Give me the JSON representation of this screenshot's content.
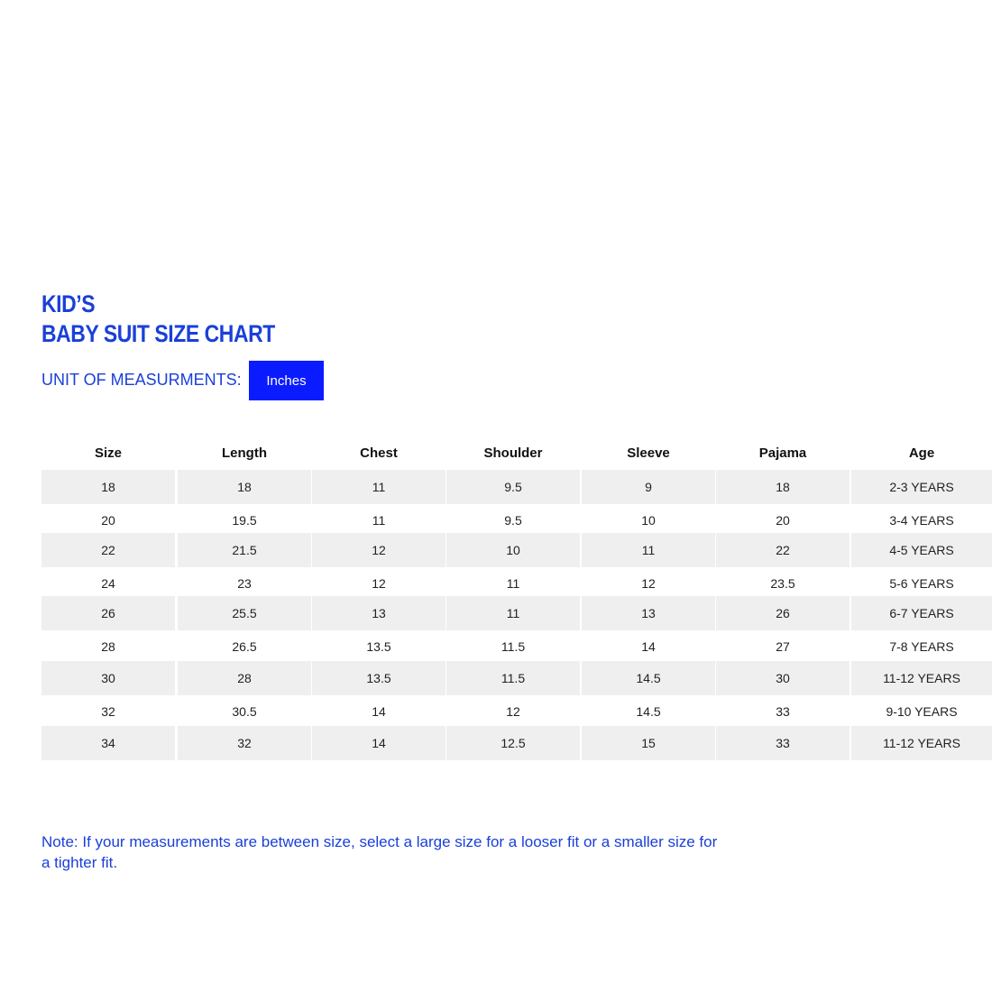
{
  "title_line1": "KID’S",
  "title_line2": "BABY SUIT SIZE CHART",
  "unit_label": "UNIT OF MEASURMENTS:",
  "unit_value": "Inches",
  "colors": {
    "accent": "#1a3fd9",
    "unit_box": "#0a1cff",
    "row_shade": "#efefef"
  },
  "table": {
    "headers": [
      "Size",
      "Length",
      "Chest",
      "Shoulder",
      "Sleeve",
      "Pajama",
      "Age"
    ],
    "rows": [
      [
        "18",
        "18",
        "11",
        "9.5",
        "9",
        "18",
        "2-3 YEARS"
      ],
      [
        "20",
        "19.5",
        "11",
        "9.5",
        "10",
        "20",
        "3-4 YEARS"
      ],
      [
        "22",
        "21.5",
        "12",
        "10",
        "11",
        "22",
        "4-5 YEARS"
      ],
      [
        "24",
        "23",
        "12",
        "11",
        "12",
        "23.5",
        "5-6 YEARS"
      ],
      [
        "26",
        "25.5",
        "13",
        "11",
        "13",
        "26",
        "6-7 YEARS"
      ],
      [
        "28",
        "26.5",
        "13.5",
        "11.5",
        "14",
        "27",
        "7-8 YEARS"
      ],
      [
        "30",
        "28",
        "13.5",
        "11.5",
        "14.5",
        "30",
        "11-12 YEARS"
      ],
      [
        "32",
        "30.5",
        "14",
        "12",
        "14.5",
        "33",
        "9-10 YEARS"
      ],
      [
        "34",
        "32",
        "14",
        "12.5",
        "15",
        "33",
        "11-12 YEARS"
      ]
    ]
  },
  "note": "Note: If your measurements are between size, select a large size for a looser fit or a smaller size for a tighter fit."
}
